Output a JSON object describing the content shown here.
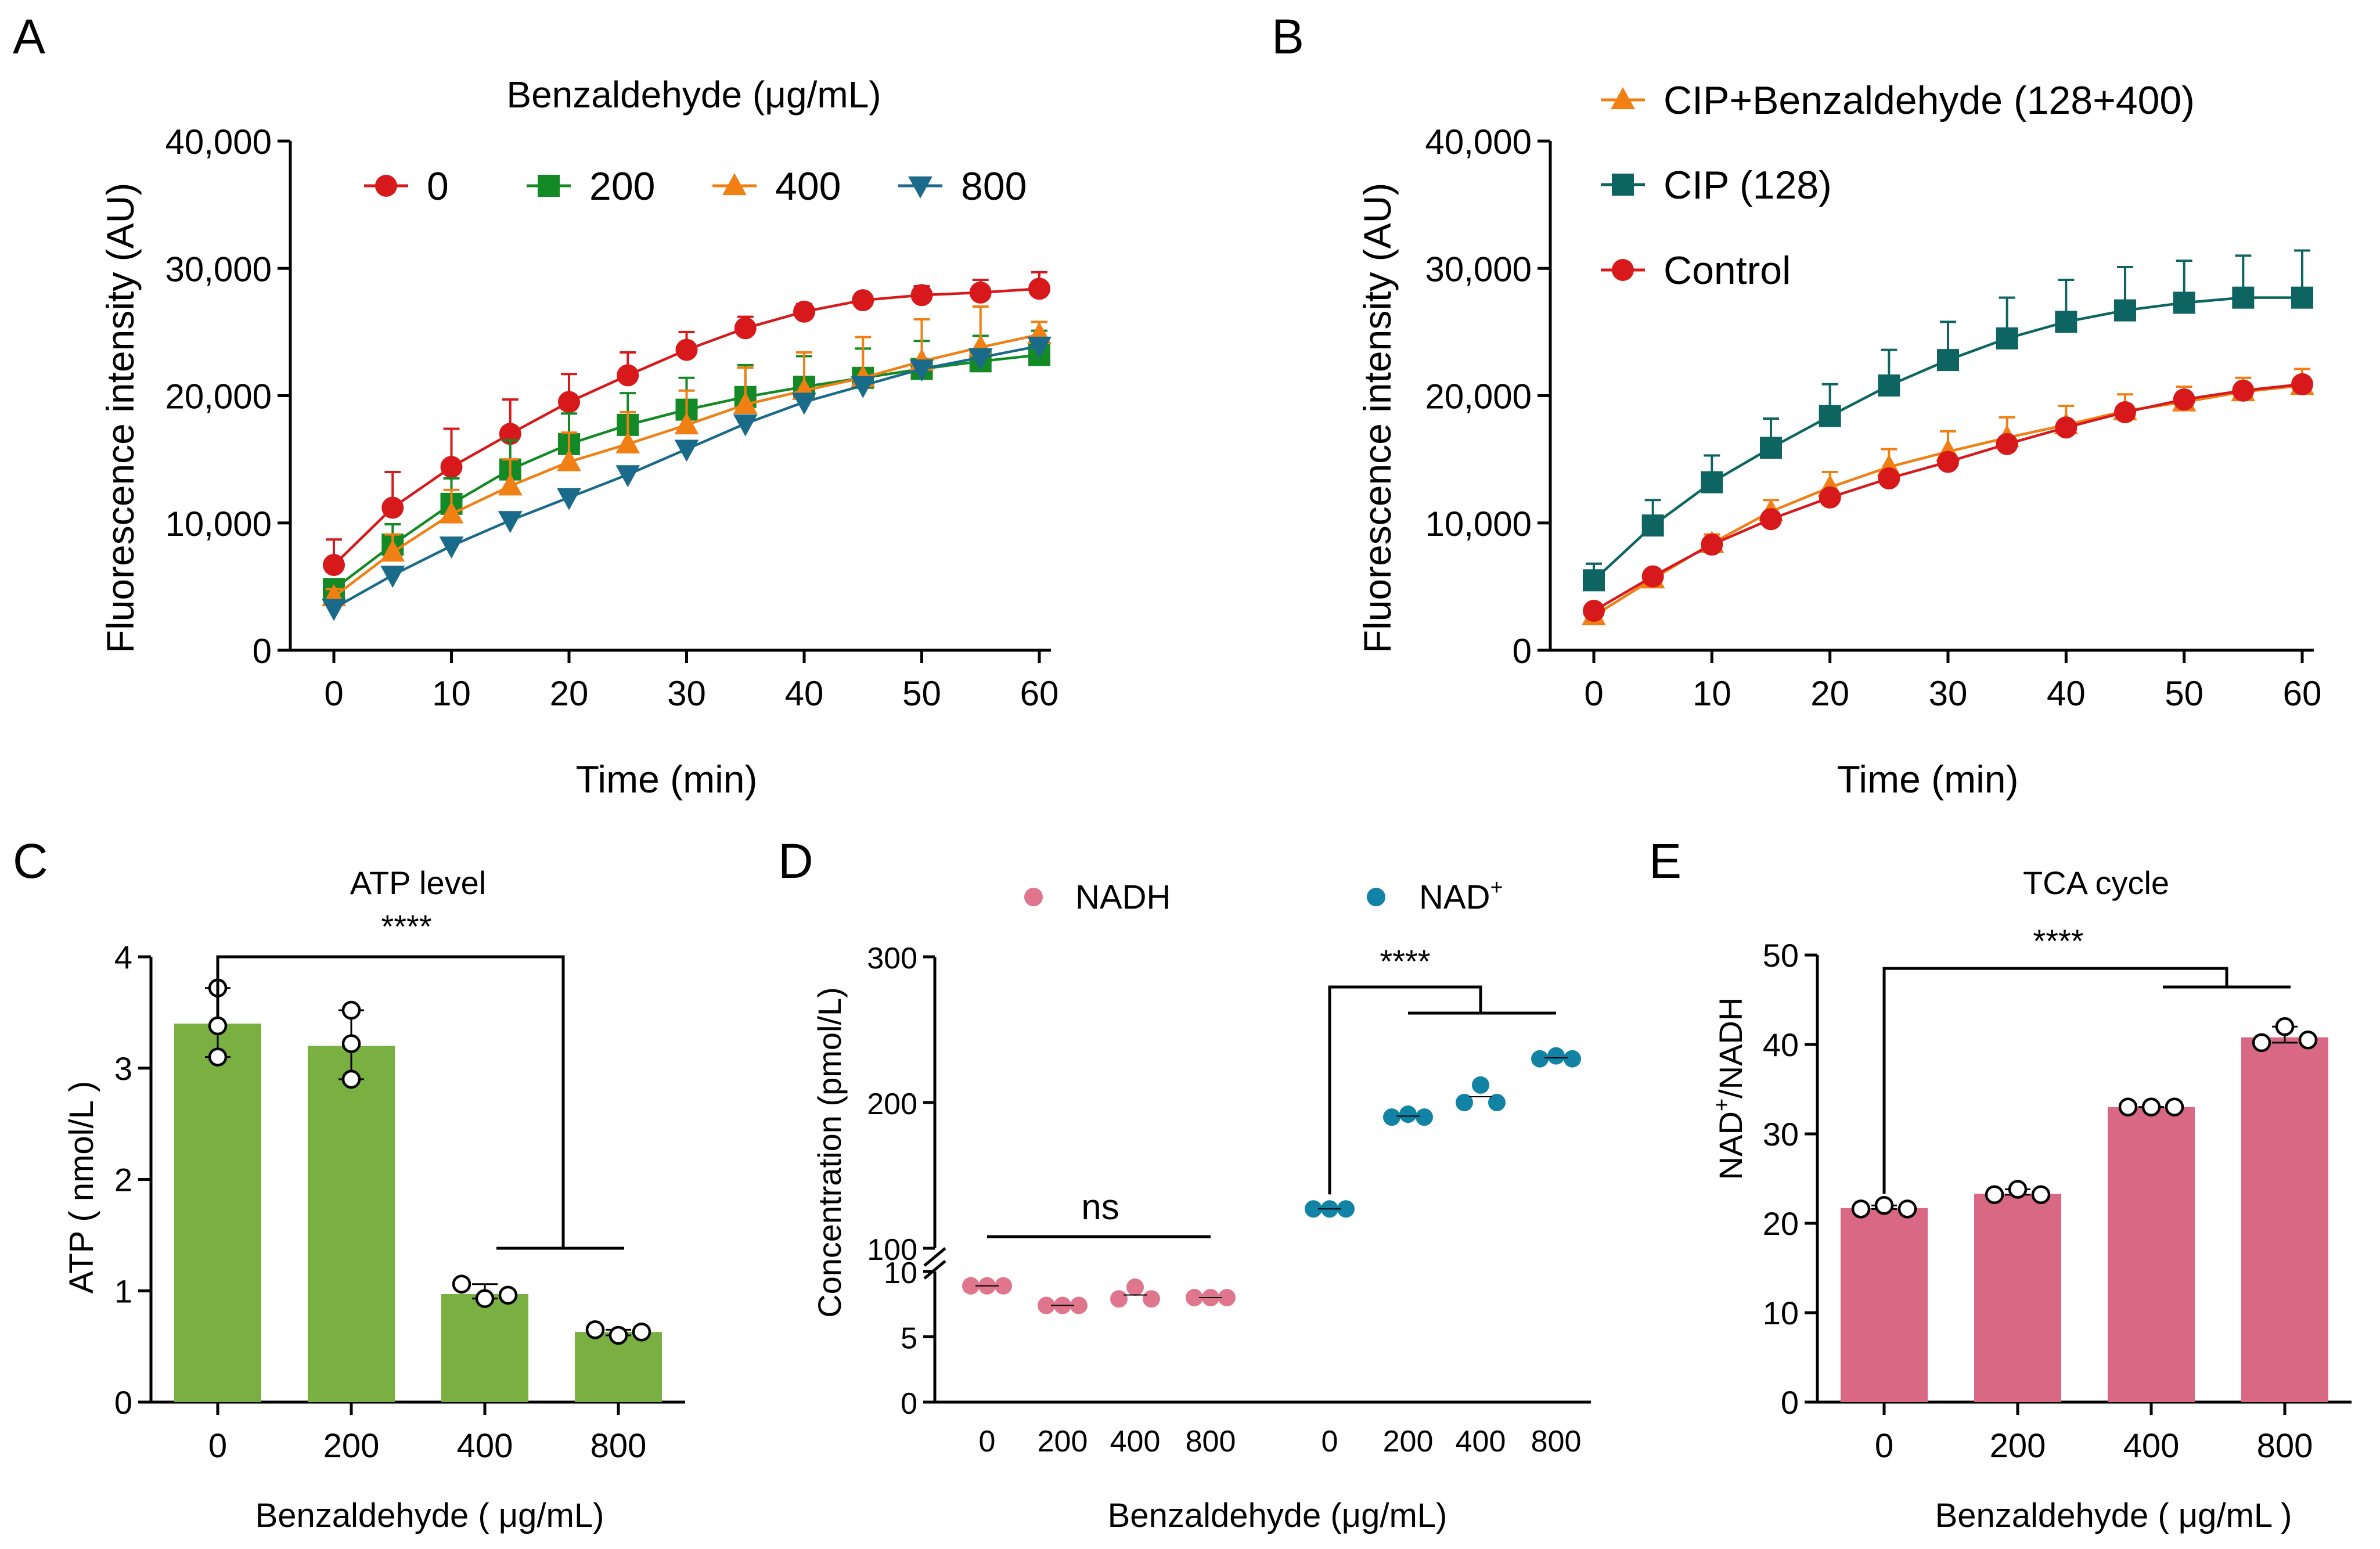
{
  "colors": {
    "red": "#d7191c",
    "green": "#138a25",
    "orange": "#f07f14",
    "blue": "#1a6a8a",
    "teal": "#0d6461",
    "bar_green": "#7aaf42",
    "bar_pink": "#d96885",
    "nadh": "#e0758e",
    "nad": "#1283a5",
    "axis": "#000000"
  },
  "chart_data": [
    {
      "panel": "A",
      "type": "line",
      "title": "Benzaldehyde (μg/mL)",
      "xlabel": "Time (min)",
      "ylabel": "Fluorescence intensity (AU)",
      "xlim": [
        0,
        60
      ],
      "ylim": [
        0,
        40000
      ],
      "xticks": [
        0,
        10,
        20,
        30,
        40,
        50,
        60
      ],
      "yticks": [
        0,
        10000,
        20000,
        30000,
        40000
      ],
      "ytick_labels": [
        "0",
        "10,000",
        "20,000",
        "30,000",
        "40,000"
      ],
      "x": [
        0,
        5,
        10,
        15,
        20,
        25,
        30,
        35,
        40,
        45,
        50,
        55,
        60
      ],
      "legend": "top, single row",
      "series": [
        {
          "name": "0",
          "color_key": "red",
          "marker": "circle",
          "values": [
            6700,
            11200,
            14400,
            17000,
            19500,
            21600,
            23600,
            25300,
            26600,
            27500,
            27900,
            28100,
            28400
          ],
          "errors": [
            2000,
            2800,
            3000,
            2700,
            2200,
            1800,
            1400,
            900,
            600,
            500,
            700,
            1000,
            1300
          ]
        },
        {
          "name": "200",
          "color_key": "green",
          "marker": "square",
          "values": [
            4800,
            8300,
            11500,
            14200,
            16200,
            17700,
            18900,
            19900,
            20700,
            21400,
            22100,
            22700,
            23200
          ],
          "errors": [
            700,
            1600,
            2000,
            2300,
            2400,
            2500,
            2500,
            2500,
            2400,
            2300,
            2200,
            2000,
            1900
          ]
        },
        {
          "name": "400",
          "color_key": "orange",
          "marker": "triangle-up",
          "values": [
            4200,
            7700,
            10700,
            12900,
            14800,
            16200,
            17700,
            19300,
            20400,
            21400,
            22700,
            23800,
            24800
          ],
          "errors": [
            600,
            1400,
            1900,
            2100,
            2300,
            2500,
            2700,
            2900,
            3000,
            3200,
            3300,
            3200,
            1000
          ]
        },
        {
          "name": "800",
          "color_key": "blue",
          "marker": "triangle-down",
          "values": [
            3300,
            5900,
            8200,
            10200,
            12000,
            13800,
            15800,
            17800,
            19500,
            20800,
            22100,
            23000,
            23900
          ],
          "errors": [
            300,
            300,
            300,
            300,
            300,
            300,
            300,
            300,
            300,
            300,
            300,
            300,
            300
          ]
        }
      ]
    },
    {
      "panel": "B",
      "type": "line",
      "xlabel": "Time (min)",
      "ylabel": "Fluorescence intensity (AU)",
      "xlim": [
        0,
        60
      ],
      "ylim": [
        0,
        40000
      ],
      "xticks": [
        0,
        10,
        20,
        30,
        40,
        50,
        60
      ],
      "yticks": [
        0,
        10000,
        20000,
        30000,
        40000
      ],
      "ytick_labels": [
        "0",
        "10,000",
        "20,000",
        "30,000",
        "40,000"
      ],
      "x": [
        0,
        5,
        10,
        15,
        20,
        25,
        30,
        35,
        40,
        45,
        50,
        55,
        60
      ],
      "legend": "top-left, stacked",
      "series": [
        {
          "name": "CIP+Benzaldehyde (128+400)",
          "color_key": "orange",
          "marker": "triangle-up",
          "values": [
            2700,
            5600,
            8400,
            10900,
            12800,
            14400,
            15600,
            16700,
            17700,
            18800,
            19500,
            20300,
            20800
          ],
          "errors": [
            400,
            600,
            700,
            900,
            1200,
            1400,
            1600,
            1600,
            1500,
            1300,
            1200,
            1100,
            1300
          ]
        },
        {
          "name": "CIP (128)",
          "color_key": "teal",
          "marker": "square",
          "values": [
            5500,
            9800,
            13200,
            15900,
            18400,
            20800,
            22800,
            24500,
            25800,
            26700,
            27300,
            27700,
            27700
          ],
          "errors": [
            1300,
            2000,
            2100,
            2300,
            2500,
            2800,
            3000,
            3200,
            3300,
            3400,
            3300,
            3300,
            3700
          ]
        },
        {
          "name": "Control",
          "color_key": "red",
          "marker": "circle",
          "values": [
            3100,
            5800,
            8300,
            10300,
            12000,
            13500,
            14800,
            16200,
            17500,
            18700,
            19700,
            20400,
            20900
          ],
          "errors": [
            200,
            200,
            200,
            200,
            200,
            200,
            200,
            200,
            200,
            200,
            200,
            200,
            200
          ]
        }
      ]
    },
    {
      "panel": "C",
      "type": "bar",
      "title": "ATP level",
      "xlabel": "Benzaldehyde ( μg/mL)",
      "ylabel": "ATP ( nmol/L )",
      "categories": [
        "0",
        "200",
        "400",
        "800"
      ],
      "values": [
        3.4,
        3.2,
        0.97,
        0.63
      ],
      "points": [
        [
          3.72,
          3.38,
          3.1
        ],
        [
          3.52,
          3.22,
          2.9
        ],
        [
          1.06,
          0.93,
          0.96
        ],
        [
          0.65,
          0.6,
          0.63
        ]
      ],
      "ylim": [
        0,
        4
      ],
      "yticks": [
        0,
        1,
        2,
        3,
        4
      ],
      "significance": "****"
    },
    {
      "panel": "D",
      "type": "scatter",
      "xlabel": "Benzaldehyde (μg/mL)",
      "ylabel": "Concentration (pmol/L)",
      "axis_break": {
        "lower": [
          0,
          10
        ],
        "upper": [
          100,
          300
        ]
      },
      "ytick_labels": [
        "0",
        "5",
        "10",
        "100",
        "200",
        "300"
      ],
      "categories": [
        "0",
        "200",
        "400",
        "800",
        "0",
        "200",
        "400",
        "800"
      ],
      "series": [
        {
          "name": "NADH",
          "color_key": "nadh",
          "points": [
            [
              8.9,
              8.9,
              8.9
            ],
            [
              7.4,
              7.4,
              7.4
            ],
            [
              7.9,
              8.8,
              7.9
            ],
            [
              8.0,
              8.0,
              8.0
            ]
          ]
        },
        {
          "name": "NAD⁺",
          "color_key": "nad",
          "points": [
            [
              127,
              127,
              127
            ],
            [
              190,
              192,
              190
            ],
            [
              200,
              212,
              200
            ],
            [
              230,
              232,
              230
            ]
          ]
        }
      ],
      "significance": [
        "ns",
        "****"
      ]
    },
    {
      "panel": "E",
      "type": "bar",
      "title": "TCA cycle",
      "xlabel": "Benzaldehyde ( μg/mL )",
      "ylabel": "NAD⁺/NADH",
      "categories": [
        "0",
        "200",
        "400",
        "800"
      ],
      "values": [
        21.7,
        23.3,
        33.0,
        40.8
      ],
      "points": [
        [
          21.6,
          22.0,
          21.6
        ],
        [
          23.2,
          23.8,
          23.2
        ],
        [
          33.0,
          33.0,
          33.0
        ],
        [
          40.2,
          42.0,
          40.5
        ]
      ],
      "ylim": [
        0,
        50
      ],
      "yticks": [
        0,
        10,
        20,
        30,
        40,
        50
      ],
      "significance": "****"
    }
  ],
  "panel_letters": [
    "A",
    "B",
    "C",
    "D",
    "E"
  ],
  "legend_D": {
    "nadh": "NADH",
    "nad": "NAD",
    "nad_sup": "+"
  },
  "ylabel_E": {
    "a": "NAD",
    "sup": "+",
    "b": "/NADH"
  }
}
